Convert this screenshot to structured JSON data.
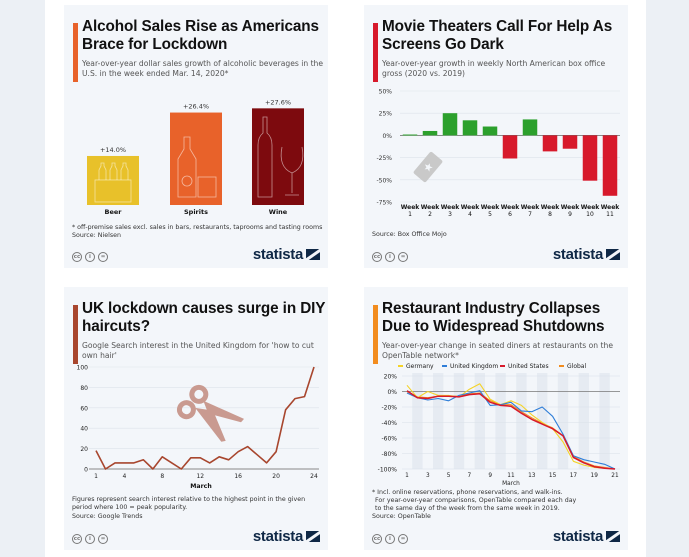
{
  "panels": {
    "alcohol": {
      "title": "Alcohol Sales Rise as Americans Brace for Lockdown",
      "subtitle": "Year-over-year dollar sales growth of alcoholic beverages in the U.S. in the week ended Mar. 14, 2020*",
      "footnote": "* off-premise sales excl. sales in bars, restaurants, taprooms and tasting rooms",
      "source": "Source: Nielsen",
      "accent": "#e8622a"
    },
    "movies": {
      "title": "Movie Theaters Call For Help As Screens Go Dark",
      "subtitle": "Year-over-year growth in weekly North American box office gross (2020 vs. 2019)",
      "source": "Source: Box Office Mojo",
      "accent": "#d7192b"
    },
    "haircuts": {
      "title": "UK lockdown causes surge in DIY haircuts?",
      "subtitle": "Google Search interest in the United Kingdom for 'how to cut own hair'",
      "footnote": "Figures represent search interest relative to the highest point in the given period where 100 = peak popularity.",
      "source": "Source: Google Trends",
      "accent": "#a8462e"
    },
    "restaurants": {
      "title": "Restaurant Industry Collapses Due to Widespread Shutdowns",
      "subtitle": "Year-over-year change in seated diners at restaurants on the OpenTable network*",
      "footnote_lines": [
        "* Incl. online reservations, phone reservations, and walk-ins.",
        "For year-over-year comparisons, OpenTable compared each day",
        "to the same day of the week from the same week in 2019."
      ],
      "source": "Source: OpenTable",
      "accent": "#f28c1e"
    }
  },
  "branding": {
    "logo_text": "statista",
    "license_icons": [
      "cc-icon",
      "by-icon",
      "nd-icon"
    ],
    "license_glyphs": [
      "cc",
      "i",
      "="
    ]
  },
  "chart_data": [
    {
      "type": "bar",
      "id": "alcohol",
      "categories": [
        "Beer",
        "Spirits",
        "Wine"
      ],
      "values": [
        14.0,
        26.4,
        27.6
      ],
      "labels": [
        "+14.0%",
        "+26.4%",
        "+27.6%"
      ],
      "colors": [
        "#e8c12a",
        "#e8622a",
        "#7d0a0e"
      ],
      "ylim": [
        0,
        30
      ]
    },
    {
      "type": "bar",
      "id": "movies",
      "categories": [
        "Week 1",
        "Week 2",
        "Week 3",
        "Week 4",
        "Week 5",
        "Week 6",
        "Week 7",
        "Week 8",
        "Week 9",
        "Week 10",
        "Week 11"
      ],
      "values": [
        1,
        5,
        25,
        17,
        10,
        -26,
        18,
        -18,
        -15,
        -51,
        -68
      ],
      "yticks": [
        50,
        25,
        0,
        -25,
        -50,
        -75
      ],
      "ytick_labels": [
        "50%",
        "25%",
        "0%",
        "-25%",
        "-50%",
        "-75%"
      ],
      "ylim": [
        -75,
        50
      ],
      "positive_color": "#2ca02c",
      "negative_color": "#d7192b",
      "grid": true
    },
    {
      "type": "line",
      "id": "haircuts",
      "x": [
        1,
        2,
        3,
        4,
        5,
        6,
        7,
        8,
        9,
        10,
        11,
        12,
        13,
        14,
        15,
        16,
        17,
        18,
        19,
        20,
        21,
        22,
        23,
        24
      ],
      "values": [
        18,
        0,
        6,
        6,
        6,
        9,
        0,
        12,
        6,
        0,
        11,
        11,
        6,
        12,
        9,
        17,
        22,
        14,
        6,
        17,
        58,
        69,
        71,
        100
      ],
      "xticks": [
        1,
        4,
        8,
        12,
        16,
        20,
        24
      ],
      "yticks": [
        0,
        20,
        40,
        60,
        80,
        100
      ],
      "xlabel": "March",
      "ylim": [
        0,
        100
      ],
      "color": "#a8462e",
      "grid": true
    },
    {
      "type": "line",
      "id": "restaurants",
      "x": [
        1,
        2,
        3,
        4,
        5,
        6,
        7,
        8,
        9,
        10,
        11,
        12,
        13,
        14,
        15,
        16,
        17,
        18,
        19,
        20,
        21
      ],
      "series": [
        {
          "name": "Germany",
          "color": "#f5d327",
          "values": [
            8,
            -8,
            0,
            -5,
            -5,
            -7,
            3,
            10,
            -10,
            -17,
            -12,
            -18,
            -30,
            -40,
            -48,
            -65,
            -90,
            -95,
            -98,
            -99,
            -100
          ]
        },
        {
          "name": "United Kingdom",
          "color": "#2f7ed8",
          "values": [
            -2,
            -8,
            -11,
            -9,
            -12,
            -5,
            -2,
            1,
            -18,
            -17,
            -14,
            -25,
            -26,
            -20,
            -32,
            -55,
            -83,
            -88,
            -91,
            -94,
            -100
          ]
        },
        {
          "name": "United States",
          "color": "#d7192b",
          "values": [
            1,
            -8,
            -9,
            -6,
            -6,
            -7,
            -4,
            -3,
            -14,
            -18,
            -19,
            -28,
            -36,
            -42,
            -48,
            -57,
            -85,
            -92,
            -97,
            -99,
            -100
          ]
        },
        {
          "name": "Global",
          "color": "#f28c1e",
          "values": [
            0,
            -7,
            -8,
            -6,
            -6,
            -6,
            -3,
            -2,
            -12,
            -17,
            -17,
            -26,
            -34,
            -41,
            -47,
            -57,
            -84,
            -91,
            -96,
            -98,
            -100
          ]
        }
      ],
      "xticks": [
        1,
        3,
        5,
        7,
        9,
        11,
        13,
        15,
        17,
        19,
        21
      ],
      "yticks": [
        20,
        0,
        -20,
        -40,
        -60,
        -80,
        -100
      ],
      "ytick_labels": [
        "20%",
        "0%",
        "-20%",
        "-40%",
        "-60%",
        "-80%",
        "-100%"
      ],
      "xlabel": "March",
      "ylim": [
        -100,
        20
      ],
      "legend": "top",
      "grid": true
    }
  ]
}
